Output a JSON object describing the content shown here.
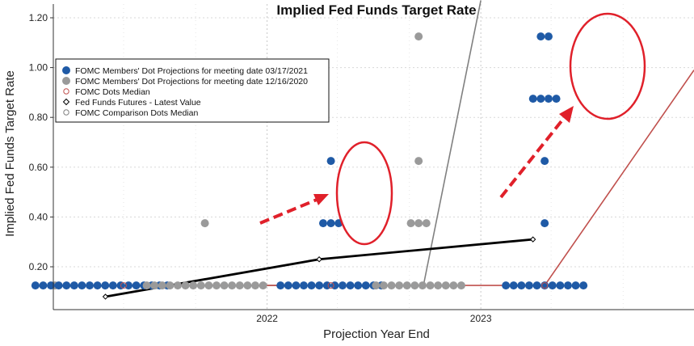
{
  "chart_data": {
    "type": "scatter",
    "title": "Implied Fed Funds Target Rate",
    "xlabel": "Projection Year End",
    "ylabel": "Implied Fed Funds Target Rate",
    "ylim": [
      0.07,
      1.27
    ],
    "y_ticks": [
      "1.20",
      "1.00",
      "0.80",
      "0.60",
      "0.40",
      "0.20"
    ],
    "x_tick_labels": [
      "2022",
      "2023"
    ],
    "grid": true,
    "legend_position": "top-left",
    "colors": {
      "dots_current": "#1f5aa6",
      "dots_previous": "#9a9a9a",
      "median_line": "#c0504d",
      "futures_line": "#000000",
      "comparison_line": "#808080",
      "annotation": "#e0202a"
    },
    "legend": [
      {
        "label": "FOMC Members' Dot Projections for meeting date 03/17/2021",
        "marker": "dot-blue"
      },
      {
        "label": "FOMC Members' Dot Projections for meeting date 12/16/2020",
        "marker": "dot-gray"
      },
      {
        "label": "FOMC Dots Median",
        "marker": "ring-red"
      },
      {
        "label": "Fed Funds Futures - Latest Value",
        "marker": "diamond-black"
      },
      {
        "label": "FOMC Comparison Dots Median",
        "marker": "ring-gray"
      }
    ],
    "dot_groups": [
      {
        "series": "previous",
        "year": "2021",
        "y": 0.125,
        "count": 1
      },
      {
        "series": "current",
        "year": "2021",
        "y": 0.125,
        "count": 18
      },
      {
        "series": "previous",
        "year": "2022",
        "y": 0.125,
        "count": 16
      },
      {
        "series": "previous",
        "year": "2022",
        "y": 0.375,
        "count": 1
      },
      {
        "series": "current",
        "year": "2022",
        "y": 0.125,
        "count": 14
      },
      {
        "series": "current",
        "year": "2022",
        "y": 0.375,
        "count": 3
      },
      {
        "series": "current",
        "year": "2022",
        "y": 0.625,
        "count": 1
      },
      {
        "series": "previous",
        "year": "2023",
        "y": 0.125,
        "count": 12
      },
      {
        "series": "previous",
        "year": "2023",
        "y": 0.375,
        "count": 3
      },
      {
        "series": "previous",
        "year": "2023",
        "y": 0.625,
        "count": 1
      },
      {
        "series": "previous",
        "year": "2023",
        "y": 1.125,
        "count": 1
      },
      {
        "series": "current",
        "year": "2023",
        "y": 0.125,
        "count": 11
      },
      {
        "series": "current",
        "year": "2023",
        "y": 0.375,
        "count": 1
      },
      {
        "series": "current",
        "year": "2023",
        "y": 0.625,
        "count": 1
      },
      {
        "series": "current",
        "year": "2023",
        "y": 0.875,
        "count": 4
      },
      {
        "series": "current",
        "year": "2023",
        "y": 1.125,
        "count": 2
      }
    ],
    "fed_funds_futures": [
      {
        "date": "2021-03-31",
        "y": 0.08
      },
      {
        "date": "2022-03-31",
        "y": 0.23
      },
      {
        "date": "2023-03-31",
        "y": 0.31
      }
    ]
  }
}
